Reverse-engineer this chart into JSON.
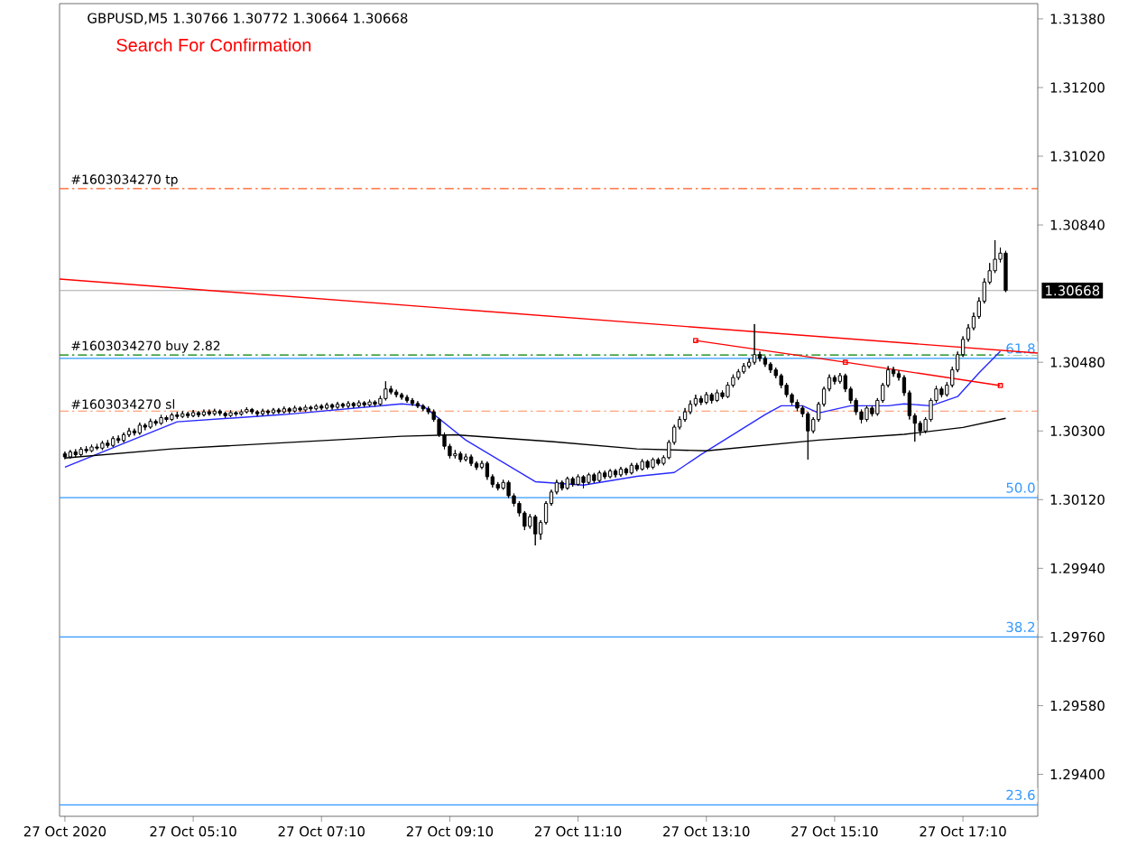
{
  "chart_data": {
    "type": "candlestick",
    "title": "GBPUSD,M5  1.30766 1.30772 1.30664 1.30668",
    "subtitle": "Search For Confirmation",
    "color": "#000000",
    "xlim": [
      "2020-10-27T03:05",
      "2020-10-27T18:20"
    ],
    "ylim": [
      1.2929,
      1.3142
    ],
    "xticks": [
      {
        "value": "2020-10-27T03:10",
        "label": "27 Oct 2020"
      },
      {
        "value": "2020-10-27T05:10",
        "label": "27 Oct 05:10"
      },
      {
        "value": "2020-10-27T07:10",
        "label": "27 Oct 07:10"
      },
      {
        "value": "2020-10-27T09:10",
        "label": "27 Oct 09:10"
      },
      {
        "value": "2020-10-27T11:10",
        "label": "27 Oct 11:10"
      },
      {
        "value": "2020-10-27T13:10",
        "label": "27 Oct 13:10"
      },
      {
        "value": "2020-10-27T15:10",
        "label": "27 Oct 15:10"
      },
      {
        "value": "2020-10-27T17:10",
        "label": "27 Oct 17:10"
      }
    ],
    "yticks": [
      {
        "value": 1.3138,
        "label": "1.31380"
      },
      {
        "value": 1.312,
        "label": "1.31200"
      },
      {
        "value": 1.3102,
        "label": "1.31020"
      },
      {
        "value": 1.3084,
        "label": "1.30840"
      },
      {
        "value": 1.3048,
        "label": "1.30480"
      },
      {
        "value": 1.303,
        "label": "1.30300"
      },
      {
        "value": 1.3012,
        "label": "1.30120"
      },
      {
        "value": 1.2994,
        "label": "1.29940"
      },
      {
        "value": 1.2976,
        "label": "1.29760"
      },
      {
        "value": 1.2958,
        "label": "1.29580"
      },
      {
        "value": 1.294,
        "label": "1.29400"
      }
    ],
    "x": [
      "2020-10-27T03:10",
      "2020-10-27T03:15",
      "2020-10-27T03:20",
      "2020-10-27T03:25",
      "2020-10-27T03:30",
      "2020-10-27T03:35",
      "2020-10-27T03:40",
      "2020-10-27T03:45",
      "2020-10-27T03:50",
      "2020-10-27T03:55",
      "2020-10-27T04:00",
      "2020-10-27T04:05",
      "2020-10-27T04:10",
      "2020-10-27T04:15",
      "2020-10-27T04:20",
      "2020-10-27T04:25",
      "2020-10-27T04:30",
      "2020-10-27T04:35",
      "2020-10-27T04:40",
      "2020-10-27T04:45",
      "2020-10-27T04:50",
      "2020-10-27T04:55",
      "2020-10-27T05:00",
      "2020-10-27T05:05",
      "2020-10-27T05:10",
      "2020-10-27T05:15",
      "2020-10-27T05:20",
      "2020-10-27T05:25",
      "2020-10-27T05:30",
      "2020-10-27T05:35",
      "2020-10-27T05:40",
      "2020-10-27T05:45",
      "2020-10-27T05:50",
      "2020-10-27T05:55",
      "2020-10-27T06:00",
      "2020-10-27T06:05",
      "2020-10-27T06:10",
      "2020-10-27T06:15",
      "2020-10-27T06:20",
      "2020-10-27T06:25",
      "2020-10-27T06:30",
      "2020-10-27T06:35",
      "2020-10-27T06:40",
      "2020-10-27T06:45",
      "2020-10-27T06:50",
      "2020-10-27T06:55",
      "2020-10-27T07:00",
      "2020-10-27T07:05",
      "2020-10-27T07:10",
      "2020-10-27T07:15",
      "2020-10-27T07:20",
      "2020-10-27T07:25",
      "2020-10-27T07:30",
      "2020-10-27T07:35",
      "2020-10-27T07:40",
      "2020-10-27T07:45",
      "2020-10-27T07:50",
      "2020-10-27T07:55",
      "2020-10-27T08:00",
      "2020-10-27T08:05",
      "2020-10-27T08:10",
      "2020-10-27T08:15",
      "2020-10-27T08:20",
      "2020-10-27T08:25",
      "2020-10-27T08:30",
      "2020-10-27T08:35",
      "2020-10-27T08:40",
      "2020-10-27T08:45",
      "2020-10-27T08:50",
      "2020-10-27T08:55",
      "2020-10-27T09:00",
      "2020-10-27T09:05",
      "2020-10-27T09:10",
      "2020-10-27T09:15",
      "2020-10-27T09:20",
      "2020-10-27T09:25",
      "2020-10-27T09:30",
      "2020-10-27T09:35",
      "2020-10-27T09:40",
      "2020-10-27T09:45",
      "2020-10-27T09:50",
      "2020-10-27T09:55",
      "2020-10-27T10:00",
      "2020-10-27T10:05",
      "2020-10-27T10:10",
      "2020-10-27T10:15",
      "2020-10-27T10:20",
      "2020-10-27T10:25",
      "2020-10-27T10:30",
      "2020-10-27T10:35",
      "2020-10-27T10:40",
      "2020-10-27T10:45",
      "2020-10-27T10:50",
      "2020-10-27T10:55",
      "2020-10-27T11:00",
      "2020-10-27T11:05",
      "2020-10-27T11:10",
      "2020-10-27T11:15",
      "2020-10-27T11:20",
      "2020-10-27T11:25",
      "2020-10-27T11:30",
      "2020-10-27T11:35",
      "2020-10-27T11:40",
      "2020-10-27T11:45",
      "2020-10-27T11:50",
      "2020-10-27T11:55",
      "2020-10-27T12:00",
      "2020-10-27T12:05",
      "2020-10-27T12:10",
      "2020-10-27T12:15",
      "2020-10-27T12:20",
      "2020-10-27T12:25",
      "2020-10-27T12:30",
      "2020-10-27T12:35",
      "2020-10-27T12:40",
      "2020-10-27T12:45",
      "2020-10-27T12:50",
      "2020-10-27T12:55",
      "2020-10-27T13:00",
      "2020-10-27T13:05",
      "2020-10-27T13:10",
      "2020-10-27T13:15",
      "2020-10-27T13:20",
      "2020-10-27T13:25",
      "2020-10-27T13:30",
      "2020-10-27T13:35",
      "2020-10-27T13:40",
      "2020-10-27T13:45",
      "2020-10-27T13:50",
      "2020-10-27T13:55",
      "2020-10-27T14:00",
      "2020-10-27T14:05",
      "2020-10-27T14:10",
      "2020-10-27T14:15",
      "2020-10-27T14:20",
      "2020-10-27T14:25",
      "2020-10-27T14:30",
      "2020-10-27T14:35",
      "2020-10-27T14:40",
      "2020-10-27T14:45",
      "2020-10-27T14:50",
      "2020-10-27T14:55",
      "2020-10-27T15:00",
      "2020-10-27T15:05",
      "2020-10-27T15:10",
      "2020-10-27T15:15",
      "2020-10-27T15:20",
      "2020-10-27T15:25",
      "2020-10-27T15:30",
      "2020-10-27T15:35",
      "2020-10-27T15:40",
      "2020-10-27T15:45",
      "2020-10-27T15:50",
      "2020-10-27T15:55",
      "2020-10-27T16:00",
      "2020-10-27T16:05",
      "2020-10-27T16:10",
      "2020-10-27T16:15",
      "2020-10-27T16:20",
      "2020-10-27T16:25",
      "2020-10-27T16:30",
      "2020-10-27T16:35",
      "2020-10-27T16:40",
      "2020-10-27T16:45",
      "2020-10-27T16:50",
      "2020-10-27T16:55",
      "2020-10-27T17:00",
      "2020-10-27T17:05",
      "2020-10-27T17:10",
      "2020-10-27T17:15",
      "2020-10-27T17:20",
      "2020-10-27T17:25",
      "2020-10-27T17:30",
      "2020-10-27T17:35",
      "2020-10-27T17:40",
      "2020-10-27T17:45",
      "2020-10-27T17:50"
    ],
    "ohlc": [
      [
        1.3024,
        1.30246,
        1.30226,
        1.30232
      ],
      [
        1.30232,
        1.3025,
        1.30228,
        1.30245
      ],
      [
        1.30245,
        1.30252,
        1.30232,
        1.30238
      ],
      [
        1.30238,
        1.30258,
        1.30234,
        1.30252
      ],
      [
        1.30252,
        1.3026,
        1.30242,
        1.30248
      ],
      [
        1.30248,
        1.30264,
        1.30244,
        1.30258
      ],
      [
        1.30258,
        1.30266,
        1.3025,
        1.30255
      ],
      [
        1.30255,
        1.30274,
        1.3025,
        1.30268
      ],
      [
        1.30268,
        1.30276,
        1.30256,
        1.30262
      ],
      [
        1.30262,
        1.30286,
        1.30258,
        1.3028
      ],
      [
        1.3028,
        1.30288,
        1.30268,
        1.30275
      ],
      [
        1.30275,
        1.30296,
        1.3027,
        1.3029
      ],
      [
        1.3029,
        1.30308,
        1.30284,
        1.303
      ],
      [
        1.303,
        1.30306,
        1.30288,
        1.30295
      ],
      [
        1.30295,
        1.30322,
        1.3029,
        1.30315
      ],
      [
        1.30315,
        1.3032,
        1.30302,
        1.3031
      ],
      [
        1.3031,
        1.30332,
        1.30306,
        1.30325
      ],
      [
        1.30325,
        1.3033,
        1.30314,
        1.3032
      ],
      [
        1.3032,
        1.30342,
        1.30316,
        1.30335
      ],
      [
        1.30335,
        1.3034,
        1.30324,
        1.3033
      ],
      [
        1.3033,
        1.30348,
        1.30326,
        1.30342
      ],
      [
        1.30342,
        1.3035,
        1.30332,
        1.30338
      ],
      [
        1.30338,
        1.30352,
        1.30334,
        1.30345
      ],
      [
        1.30345,
        1.3035,
        1.30334,
        1.3034
      ],
      [
        1.3034,
        1.30355,
        1.30336,
        1.30348
      ],
      [
        1.30348,
        1.30352,
        1.30336,
        1.30342
      ],
      [
        1.30342,
        1.30356,
        1.30338,
        1.3035
      ],
      [
        1.3035,
        1.30356,
        1.3034,
        1.30345
      ],
      [
        1.30345,
        1.30358,
        1.3034,
        1.30352
      ],
      [
        1.30352,
        1.30356,
        1.3034,
        1.30346
      ],
      [
        1.30346,
        1.3035,
        1.30334,
        1.3034
      ],
      [
        1.3034,
        1.30354,
        1.30336,
        1.30348
      ],
      [
        1.30348,
        1.30352,
        1.30338,
        1.30344
      ],
      [
        1.30344,
        1.30356,
        1.3034,
        1.3035
      ],
      [
        1.3035,
        1.30362,
        1.30346,
        1.30356
      ],
      [
        1.30356,
        1.3036,
        1.30344,
        1.3035
      ],
      [
        1.3035,
        1.30354,
        1.30338,
        1.30345
      ],
      [
        1.30345,
        1.30358,
        1.3034,
        1.30352
      ],
      [
        1.30352,
        1.30356,
        1.30342,
        1.30348
      ],
      [
        1.30348,
        1.3036,
        1.30344,
        1.30355
      ],
      [
        1.30355,
        1.3036,
        1.30345,
        1.3035
      ],
      [
        1.3035,
        1.30364,
        1.30346,
        1.30358
      ],
      [
        1.30358,
        1.30362,
        1.30346,
        1.30352
      ],
      [
        1.30352,
        1.30366,
        1.30348,
        1.3036
      ],
      [
        1.3036,
        1.30364,
        1.3035,
        1.30355
      ],
      [
        1.30355,
        1.30368,
        1.3035,
        1.30362
      ],
      [
        1.30362,
        1.30366,
        1.30352,
        1.30358
      ],
      [
        1.30358,
        1.3037,
        1.30354,
        1.30365
      ],
      [
        1.30365,
        1.3037,
        1.30355,
        1.3036
      ],
      [
        1.3036,
        1.30374,
        1.30356,
        1.30368
      ],
      [
        1.30368,
        1.30372,
        1.30356,
        1.30362
      ],
      [
        1.30362,
        1.30376,
        1.30358,
        1.3037
      ],
      [
        1.3037,
        1.30374,
        1.3036,
        1.30365
      ],
      [
        1.30365,
        1.30378,
        1.3036,
        1.30372
      ],
      [
        1.30372,
        1.30376,
        1.3036,
        1.30366
      ],
      [
        1.30366,
        1.3038,
        1.30362,
        1.30374
      ],
      [
        1.30374,
        1.30378,
        1.30362,
        1.30368
      ],
      [
        1.30368,
        1.30382,
        1.30364,
        1.30376
      ],
      [
        1.30376,
        1.3038,
        1.30364,
        1.3037
      ],
      [
        1.3037,
        1.30392,
        1.30366,
        1.30385
      ],
      [
        1.30385,
        1.3043,
        1.3038,
        1.3041
      ],
      [
        1.3041,
        1.30418,
        1.30396,
        1.30402
      ],
      [
        1.30402,
        1.30408,
        1.30388,
        1.30395
      ],
      [
        1.30395,
        1.304,
        1.30382,
        1.30388
      ],
      [
        1.30388,
        1.30394,
        1.30374,
        1.3038
      ],
      [
        1.3038,
        1.30386,
        1.30366,
        1.30372
      ],
      [
        1.30372,
        1.30378,
        1.3036,
        1.30365
      ],
      [
        1.30365,
        1.3037,
        1.30352,
        1.30358
      ],
      [
        1.30358,
        1.30364,
        1.30344,
        1.3035
      ],
      [
        1.3035,
        1.30356,
        1.30324,
        1.3033
      ],
      [
        1.3033,
        1.30334,
        1.30284,
        1.3029
      ],
      [
        1.3029,
        1.30296,
        1.30252,
        1.3026
      ],
      [
        1.3026,
        1.30266,
        1.30228,
        1.30235
      ],
      [
        1.30235,
        1.3025,
        1.30228,
        1.3024
      ],
      [
        1.3024,
        1.30246,
        1.30218,
        1.30225
      ],
      [
        1.30225,
        1.3024,
        1.3022,
        1.30232
      ],
      [
        1.30232,
        1.30238,
        1.30208,
        1.30215
      ],
      [
        1.30215,
        1.3022,
        1.30198,
        1.30205
      ],
      [
        1.30205,
        1.30222,
        1.302,
        1.30215
      ],
      [
        1.30215,
        1.3022,
        1.30172,
        1.3018
      ],
      [
        1.3018,
        1.30186,
        1.30152,
        1.3016
      ],
      [
        1.3016,
        1.30166,
        1.30144,
        1.3015
      ],
      [
        1.3015,
        1.30172,
        1.30146,
        1.30165
      ],
      [
        1.30165,
        1.3017,
        1.30124,
        1.3013
      ],
      [
        1.3013,
        1.30136,
        1.30102,
        1.3011
      ],
      [
        1.3011,
        1.30116,
        1.30076,
        1.30085
      ],
      [
        1.30085,
        1.3009,
        1.3004,
        1.3005
      ],
      [
        1.3005,
        1.30082,
        1.30044,
        1.30075
      ],
      [
        1.30075,
        1.3008,
        1.3,
        1.3003
      ],
      [
        1.3003,
        1.30066,
        1.30015,
        1.3006
      ],
      [
        1.3006,
        1.30116,
        1.30055,
        1.3011
      ],
      [
        1.3011,
        1.30146,
        1.30104,
        1.3014
      ],
      [
        1.3014,
        1.30172,
        1.30134,
        1.30165
      ],
      [
        1.30165,
        1.3017,
        1.30144,
        1.3015
      ],
      [
        1.3015,
        1.3018,
        1.30146,
        1.30175
      ],
      [
        1.30175,
        1.3018,
        1.30154,
        1.3016
      ],
      [
        1.3016,
        1.30186,
        1.30156,
        1.3018
      ],
      [
        1.3018,
        1.30184,
        1.3015,
        1.30165
      ],
      [
        1.30165,
        1.3019,
        1.3016,
        1.30185
      ],
      [
        1.30185,
        1.3019,
        1.30164,
        1.3017
      ],
      [
        1.3017,
        1.30196,
        1.30166,
        1.3019
      ],
      [
        1.3019,
        1.30196,
        1.30174,
        1.3018
      ],
      [
        1.3018,
        1.302,
        1.30176,
        1.30195
      ],
      [
        1.30195,
        1.302,
        1.30178,
        1.30185
      ],
      [
        1.30185,
        1.30206,
        1.3018,
        1.302
      ],
      [
        1.302,
        1.30204,
        1.30184,
        1.3019
      ],
      [
        1.3019,
        1.30216,
        1.30186,
        1.3021
      ],
      [
        1.3021,
        1.30216,
        1.30194,
        1.302
      ],
      [
        1.302,
        1.30226,
        1.30196,
        1.3022
      ],
      [
        1.3022,
        1.30224,
        1.302,
        1.30205
      ],
      [
        1.30205,
        1.3023,
        1.302,
        1.30225
      ],
      [
        1.30225,
        1.3023,
        1.3021,
        1.30215
      ],
      [
        1.30215,
        1.30236,
        1.3021,
        1.3023
      ],
      [
        1.3023,
        1.30276,
        1.30226,
        1.3027
      ],
      [
        1.3027,
        1.30316,
        1.30264,
        1.3031
      ],
      [
        1.3031,
        1.30338,
        1.30304,
        1.3033
      ],
      [
        1.3033,
        1.3036,
        1.30324,
        1.3035
      ],
      [
        1.3035,
        1.3038,
        1.30344,
        1.3037
      ],
      [
        1.3037,
        1.30395,
        1.30364,
        1.30385
      ],
      [
        1.30385,
        1.30392,
        1.30368,
        1.30375
      ],
      [
        1.30375,
        1.30402,
        1.3037,
        1.30395
      ],
      [
        1.30395,
        1.304,
        1.30372,
        1.3038
      ],
      [
        1.3038,
        1.30408,
        1.30376,
        1.304
      ],
      [
        1.304,
        1.30406,
        1.30384,
        1.3039
      ],
      [
        1.3039,
        1.30428,
        1.30386,
        1.3042
      ],
      [
        1.3042,
        1.30448,
        1.30414,
        1.3044
      ],
      [
        1.3044,
        1.30462,
        1.30434,
        1.30455
      ],
      [
        1.30455,
        1.30478,
        1.3045,
        1.3047
      ],
      [
        1.3047,
        1.3049,
        1.30464,
        1.3048
      ],
      [
        1.3048,
        1.3058,
        1.30474,
        1.305
      ],
      [
        1.305,
        1.30508,
        1.30482,
        1.3049
      ],
      [
        1.3049,
        1.30496,
        1.30468,
        1.30475
      ],
      [
        1.30475,
        1.3048,
        1.30452,
        1.3046
      ],
      [
        1.3046,
        1.30466,
        1.30438,
        1.30445
      ],
      [
        1.30445,
        1.3045,
        1.30412,
        1.3042
      ],
      [
        1.3042,
        1.30426,
        1.30388,
        1.30395
      ],
      [
        1.30395,
        1.304,
        1.30368,
        1.30375
      ],
      [
        1.30375,
        1.30382,
        1.30352,
        1.3036
      ],
      [
        1.3036,
        1.30366,
        1.30336,
        1.30345
      ],
      [
        1.30345,
        1.3035,
        1.30225,
        1.303
      ],
      [
        1.303,
        1.30336,
        1.30294,
        1.3033
      ],
      [
        1.3033,
        1.30376,
        1.30324,
        1.3037
      ],
      [
        1.3037,
        1.30416,
        1.30364,
        1.3041
      ],
      [
        1.3041,
        1.30448,
        1.30404,
        1.3044
      ],
      [
        1.3044,
        1.30446,
        1.30422,
        1.3043
      ],
      [
        1.3043,
        1.30452,
        1.30424,
        1.30445
      ],
      [
        1.30445,
        1.3045,
        1.30402,
        1.3041
      ],
      [
        1.3041,
        1.30416,
        1.30372,
        1.3038
      ],
      [
        1.3038,
        1.30386,
        1.30342,
        1.3035
      ],
      [
        1.3035,
        1.30356,
        1.3032,
        1.3033
      ],
      [
        1.3033,
        1.30366,
        1.30324,
        1.3036
      ],
      [
        1.3036,
        1.30366,
        1.30338,
        1.30345
      ],
      [
        1.30345,
        1.30386,
        1.3034,
        1.3038
      ],
      [
        1.3038,
        1.30426,
        1.30374,
        1.3042
      ],
      [
        1.3042,
        1.3047,
        1.30414,
        1.3046
      ],
      [
        1.3046,
        1.30468,
        1.30442,
        1.3045
      ],
      [
        1.3045,
        1.30458,
        1.30432,
        1.3044
      ],
      [
        1.3044,
        1.30446,
        1.30392,
        1.304
      ],
      [
        1.304,
        1.30406,
        1.3033,
        1.3034
      ],
      [
        1.3034,
        1.30346,
        1.30272,
        1.3032
      ],
      [
        1.3032,
        1.30326,
        1.30288,
        1.303
      ],
      [
        1.303,
        1.30336,
        1.30294,
        1.3033
      ],
      [
        1.3033,
        1.30386,
        1.30324,
        1.3038
      ],
      [
        1.3038,
        1.30418,
        1.30374,
        1.3041
      ],
      [
        1.3041,
        1.30416,
        1.30388,
        1.30395
      ],
      [
        1.30395,
        1.30428,
        1.3039,
        1.3042
      ],
      [
        1.3042,
        1.30468,
        1.30414,
        1.3046
      ],
      [
        1.3046,
        1.30508,
        1.30454,
        1.305
      ],
      [
        1.305,
        1.30548,
        1.30494,
        1.3054
      ],
      [
        1.3054,
        1.3058,
        1.30534,
        1.3057
      ],
      [
        1.3057,
        1.3061,
        1.30564,
        1.306
      ],
      [
        1.306,
        1.3065,
        1.30594,
        1.3064
      ],
      [
        1.3064,
        1.307,
        1.30634,
        1.3069
      ],
      [
        1.3069,
        1.3074,
        1.30684,
        1.3072
      ],
      [
        1.3072,
        1.308,
        1.30714,
        1.3075
      ],
      [
        1.3075,
        1.3078,
        1.30742,
        1.30766
      ],
      [
        1.30766,
        1.30772,
        1.30664,
        1.30668
      ]
    ],
    "series": [
      {
        "type": "line",
        "color": "#2828ff",
        "x": [
          "2020-10-27T03:10",
          "2020-10-27T04:55",
          "2020-10-27T06:35",
          "2020-10-27T08:25",
          "2020-10-27T08:45",
          "2020-10-27T09:25",
          "2020-10-27T10:30",
          "2020-10-27T11:15",
          "2020-10-27T12:05",
          "2020-10-27T12:40",
          "2020-10-27T13:05",
          "2020-10-27T14:05",
          "2020-10-27T14:20",
          "2020-10-27T14:40",
          "2020-10-27T14:55",
          "2020-10-27T15:25",
          "2020-10-27T16:00",
          "2020-10-27T16:15",
          "2020-10-27T16:40",
          "2020-10-27T17:05",
          "2020-10-27T17:25",
          "2020-10-27T17:45"
        ],
        "values": [
          1.30205,
          1.30324,
          1.30343,
          1.30371,
          1.30366,
          1.30276,
          1.30167,
          1.30158,
          1.30181,
          1.30191,
          1.30238,
          1.30343,
          1.30366,
          1.30366,
          1.30347,
          1.30366,
          1.30366,
          1.30371,
          1.30366,
          1.3039,
          1.30452,
          1.30509
        ]
      },
      {
        "type": "line",
        "color": "#000000",
        "x": [
          "2020-10-27T03:10",
          "2020-10-27T04:50",
          "2020-10-27T08:25",
          "2020-10-27T09:15",
          "2020-10-27T10:45",
          "2020-10-27T12:05",
          "2020-10-27T13:10",
          "2020-10-27T14:55",
          "2020-10-27T16:15",
          "2020-10-27T17:10",
          "2020-10-27T17:50"
        ],
        "values": [
          1.30229,
          1.30253,
          1.30286,
          1.3029,
          1.30272,
          1.30253,
          1.30248,
          1.30276,
          1.30291,
          1.30309,
          1.30333
        ]
      },
      {
        "type": "line",
        "color": "#ff0000",
        "x": [
          "2020-10-27T03:05",
          "2020-10-27T18:20"
        ],
        "values": [
          1.30698,
          1.30504
        ]
      },
      {
        "type": "line",
        "color": "#ff0000",
        "marker": "square",
        "x": [
          "2020-10-27T13:00",
          "2020-10-27T15:20",
          "2020-10-27T17:45"
        ],
        "values": [
          1.30537,
          1.3048,
          1.30419
        ]
      }
    ],
    "ref_lines": [
      {
        "axis": "y",
        "value": 1.30935,
        "label": "#1603034270 tp",
        "color": "#ff5a1e",
        "line_style": "dashed"
      },
      {
        "axis": "y",
        "value": 1.30499,
        "label": "#1603034270 buy 2.82",
        "color": "#008000",
        "line_style": "dashed"
      },
      {
        "axis": "y",
        "value": 1.30352,
        "label": "#1603034270 sl",
        "color": "#ff8c5a",
        "line_style": "dashed"
      },
      {
        "axis": "y",
        "value": 1.3049,
        "color": "#3399ff"
      },
      {
        "axis": "y",
        "value": 1.30125,
        "color": "#3399ff"
      },
      {
        "axis": "y",
        "value": 1.2976,
        "color": "#3399ff"
      },
      {
        "axis": "y",
        "value": 1.2932,
        "color": "#3399ff"
      },
      {
        "axis": "y",
        "value": 1.30668,
        "label": "1.30668",
        "color": "#a8a8a8"
      }
    ],
    "annotations": [
      {
        "text": "61.8",
        "x": "2020-10-27T18:20",
        "y": 1.3049
      },
      {
        "text": "50.0",
        "x": "2020-10-27T18:20",
        "y": 1.30125
      },
      {
        "text": "38.2",
        "x": "2020-10-27T18:20",
        "y": 1.2976
      },
      {
        "text": "23.6",
        "x": "2020-10-27T18:20",
        "y": 1.2932
      }
    ]
  }
}
